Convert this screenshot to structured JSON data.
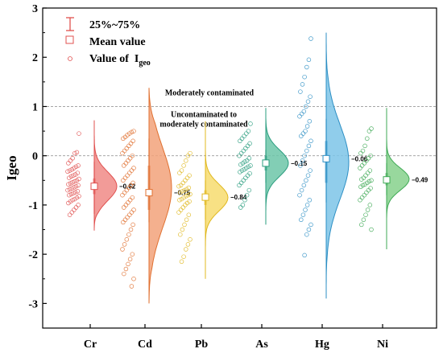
{
  "chart_data": {
    "type": "violin",
    "ylabel": "Igeo",
    "ylim": [
      -3.5,
      3
    ],
    "yticks": [
      -3,
      -2,
      -1,
      0,
      1,
      2,
      3
    ],
    "grid": false,
    "legend_position": "top-left",
    "legend": {
      "box": "25%~75%",
      "mean": "Mean value",
      "points_prefix": "Value of  I",
      "points_sub": "geo"
    },
    "reference_lines": [
      {
        "y": 1,
        "label": "Moderately contaminated"
      },
      {
        "y": 0,
        "label_line1": "Uncontaminated to",
        "label_line2": "moderately contaminated"
      }
    ],
    "series": [
      {
        "name": "Cr",
        "color": "#e0504f",
        "fill": "#f08a86",
        "mean": -0.62,
        "mean_label": "−0.62",
        "q1": -0.78,
        "q3": -0.46,
        "wlo": -1.18,
        "whi": -0.12,
        "min": -1.52,
        "max": 0.72,
        "points": [
          0.45,
          0.07,
          0.05,
          -0.05,
          -0.1,
          -0.15,
          -0.2,
          -0.22,
          -0.25,
          -0.28,
          -0.3,
          -0.32,
          -0.35,
          -0.38,
          -0.4,
          -0.42,
          -0.45,
          -0.47,
          -0.5,
          -0.52,
          -0.54,
          -0.56,
          -0.58,
          -0.6,
          -0.62,
          -0.64,
          -0.66,
          -0.68,
          -0.7,
          -0.72,
          -0.74,
          -0.76,
          -0.78,
          -0.8,
          -0.82,
          -0.85,
          -0.88,
          -0.9,
          -0.93,
          -0.96,
          -1.0,
          -1.05,
          -1.1,
          -1.15,
          -1.2
        ]
      },
      {
        "name": "Cd",
        "color": "#e07030",
        "fill": "#f2a27a",
        "mean": -0.75,
        "mean_label": "−0.75",
        "q1": -1.1,
        "q3": -0.2,
        "wlo": -1.35,
        "whi": 0.35,
        "min": -3.0,
        "max": 1.38,
        "points": [
          0.5,
          0.48,
          0.45,
          0.42,
          0.38,
          0.35,
          0.3,
          0.25,
          0.2,
          0.15,
          0.1,
          0.05,
          0.0,
          -0.05,
          -0.1,
          -0.15,
          -0.2,
          -0.25,
          -0.3,
          -0.35,
          -0.4,
          -0.45,
          -0.5,
          -0.55,
          -0.6,
          -0.65,
          -0.7,
          -0.75,
          -0.8,
          -0.85,
          -0.9,
          -0.95,
          -1.0,
          -1.05,
          -1.1,
          -1.15,
          -1.2,
          -1.25,
          -1.3,
          -1.35,
          -1.4,
          -1.5,
          -1.6,
          -1.7,
          -1.8,
          -1.9,
          -2.0,
          -2.1,
          -2.2,
          -2.3,
          -2.4,
          -2.5,
          -2.65
        ]
      },
      {
        "name": "Pb",
        "color": "#e0b820",
        "fill": "#f7dc6f",
        "mean": -0.84,
        "mean_label": "−0.84",
        "q1": -1.0,
        "q3": -0.7,
        "wlo": -1.3,
        "whi": -0.5,
        "min": -2.5,
        "max": 0.7,
        "points": [
          0.05,
          0.0,
          -0.1,
          -0.2,
          -0.3,
          -0.35,
          -0.4,
          -0.45,
          -0.5,
          -0.55,
          -0.6,
          -0.62,
          -0.65,
          -0.68,
          -0.7,
          -0.72,
          -0.75,
          -0.78,
          -0.8,
          -0.82,
          -0.85,
          -0.88,
          -0.9,
          -0.93,
          -0.96,
          -1.0,
          -1.05,
          -1.1,
          -1.15,
          -1.2,
          -1.3,
          -1.4,
          -1.5,
          -1.6,
          -1.7,
          -1.8,
          -1.9,
          -2.05,
          -2.15
        ]
      },
      {
        "name": "As",
        "color": "#2a9d7f",
        "fill": "#6cc6a8",
        "mean": -0.15,
        "mean_label": "−0.15",
        "q1": -0.3,
        "q3": 0.0,
        "wlo": -0.55,
        "whi": 0.12,
        "min": -1.4,
        "max": 0.97,
        "points": [
          0.65,
          0.5,
          0.45,
          0.4,
          0.35,
          0.3,
          0.25,
          0.2,
          0.15,
          0.1,
          0.05,
          0.0,
          -0.05,
          -0.1,
          -0.12,
          -0.15,
          -0.18,
          -0.2,
          -0.22,
          -0.25,
          -0.28,
          -0.3,
          -0.33,
          -0.36,
          -0.4,
          -0.45,
          -0.5,
          -0.55,
          -0.6,
          -0.7,
          -0.8,
          -0.9,
          -1.0,
          -1.05
        ]
      },
      {
        "name": "Hg",
        "color": "#2d8fc4",
        "fill": "#7cc4e8",
        "mean": -0.06,
        "mean_label": "−0.06",
        "q1": -0.55,
        "q3": 0.3,
        "wlo": -0.95,
        "whi": 0.75,
        "min": -2.9,
        "max": 2.5,
        "points": [
          2.38,
          1.95,
          1.8,
          1.6,
          1.45,
          1.3,
          1.2,
          1.1,
          1.0,
          0.9,
          0.85,
          0.8,
          0.7,
          0.6,
          0.5,
          0.45,
          0.4,
          0.3,
          0.2,
          0.1,
          0.0,
          -0.1,
          -0.2,
          -0.3,
          -0.4,
          -0.5,
          -0.6,
          -0.7,
          -0.8,
          -0.9,
          -1.0,
          -1.1,
          -1.2,
          -1.3,
          -1.4,
          -1.5,
          -1.6,
          -2.02
        ]
      },
      {
        "name": "Ni",
        "color": "#3faa55",
        "fill": "#86d18c",
        "mean": -0.49,
        "mean_label": "−0.49",
        "q1": -0.6,
        "q3": -0.35,
        "wlo": -0.8,
        "whi": -0.15,
        "min": -1.9,
        "max": 0.97,
        "points": [
          0.55,
          0.5,
          0.35,
          0.2,
          0.1,
          0.05,
          0.0,
          -0.05,
          -0.1,
          -0.15,
          -0.2,
          -0.25,
          -0.3,
          -0.35,
          -0.4,
          -0.45,
          -0.48,
          -0.5,
          -0.52,
          -0.55,
          -0.58,
          -0.6,
          -0.63,
          -0.66,
          -0.7,
          -0.75,
          -0.8,
          -0.85,
          -0.9,
          -1.0,
          -1.1,
          -1.2,
          -1.3,
          -1.4,
          -1.5
        ]
      }
    ]
  }
}
